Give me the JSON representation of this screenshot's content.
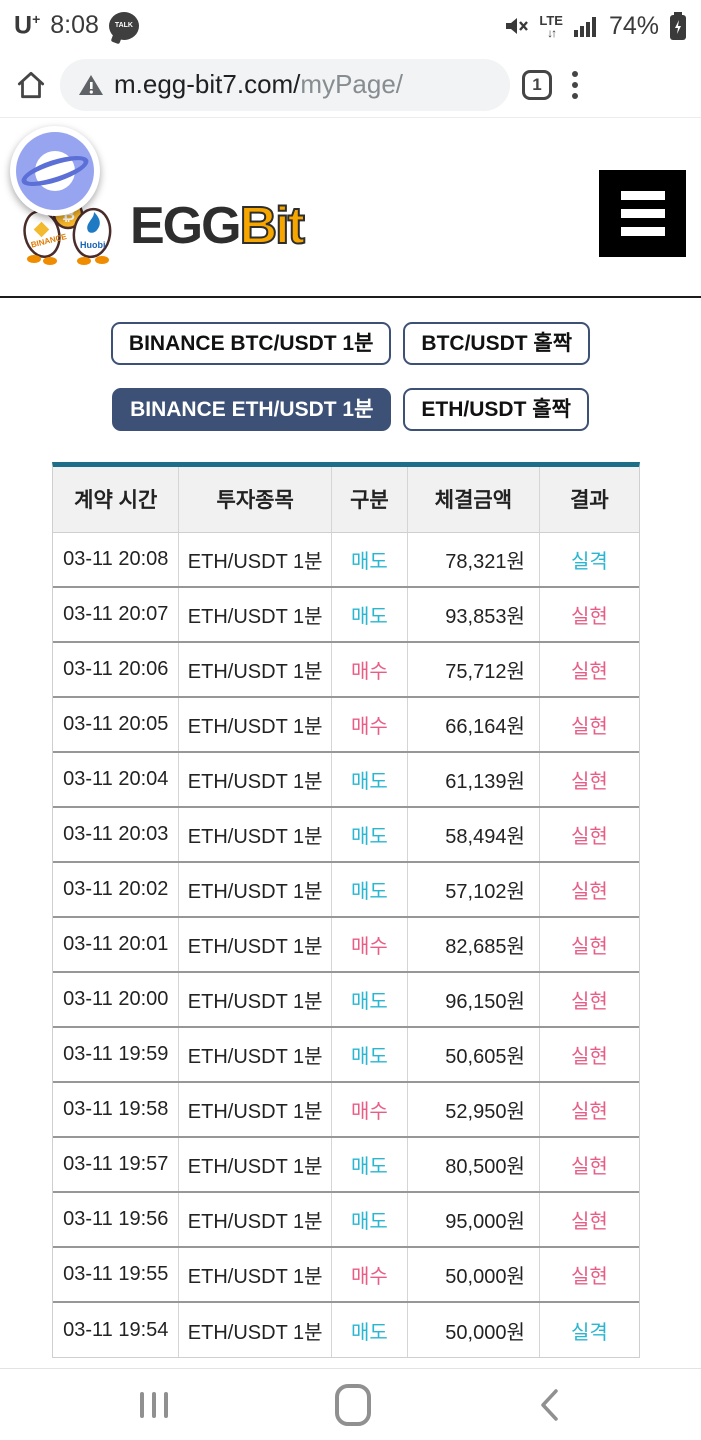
{
  "status_bar": {
    "carrier": "U",
    "carrier_sup": "+",
    "time": "8:08",
    "kakao_label": "TALK",
    "network_label": "LTE",
    "network_arrows": "↓↑",
    "battery_percent": "74%"
  },
  "browser": {
    "url_host": "m.egg-bit7.com/",
    "url_path": "myPage/",
    "tab_count": "1"
  },
  "header": {
    "logo_egg": "EGG",
    "logo_bit": "Bit"
  },
  "market_buttons": [
    {
      "label": "BINANCE BTC/USDT 1분",
      "active": false
    },
    {
      "label": "BTC/USDT 홀짝",
      "active": false
    },
    {
      "label": "BINANCE ETH/USDT 1분",
      "active": true
    },
    {
      "label": "ETH/USDT 홀짝",
      "active": false
    }
  ],
  "table": {
    "headers": [
      "계약 시간",
      "투자종목",
      "구분",
      "체결금액",
      "결과"
    ],
    "rows": [
      {
        "time": "03-11 20:08",
        "asset": "ETH/USDT 1분",
        "side": "매도",
        "side_color": "cyan",
        "amount": "78,321원",
        "result": "실격",
        "result_color": "cyan"
      },
      {
        "time": "03-11 20:07",
        "asset": "ETH/USDT 1분",
        "side": "매도",
        "side_color": "cyan",
        "amount": "93,853원",
        "result": "실현",
        "result_color": "pink"
      },
      {
        "time": "03-11 20:06",
        "asset": "ETH/USDT 1분",
        "side": "매수",
        "side_color": "pink",
        "amount": "75,712원",
        "result": "실현",
        "result_color": "pink"
      },
      {
        "time": "03-11 20:05",
        "asset": "ETH/USDT 1분",
        "side": "매수",
        "side_color": "pink",
        "amount": "66,164원",
        "result": "실현",
        "result_color": "pink"
      },
      {
        "time": "03-11 20:04",
        "asset": "ETH/USDT 1분",
        "side": "매도",
        "side_color": "cyan",
        "amount": "61,139원",
        "result": "실현",
        "result_color": "pink"
      },
      {
        "time": "03-11 20:03",
        "asset": "ETH/USDT 1분",
        "side": "매도",
        "side_color": "cyan",
        "amount": "58,494원",
        "result": "실현",
        "result_color": "pink"
      },
      {
        "time": "03-11 20:02",
        "asset": "ETH/USDT 1분",
        "side": "매도",
        "side_color": "cyan",
        "amount": "57,102원",
        "result": "실현",
        "result_color": "pink"
      },
      {
        "time": "03-11 20:01",
        "asset": "ETH/USDT 1분",
        "side": "매수",
        "side_color": "pink",
        "amount": "82,685원",
        "result": "실현",
        "result_color": "pink"
      },
      {
        "time": "03-11 20:00",
        "asset": "ETH/USDT 1분",
        "side": "매도",
        "side_color": "cyan",
        "amount": "96,150원",
        "result": "실현",
        "result_color": "pink"
      },
      {
        "time": "03-11 19:59",
        "asset": "ETH/USDT 1분",
        "side": "매도",
        "side_color": "cyan",
        "amount": "50,605원",
        "result": "실현",
        "result_color": "pink"
      },
      {
        "time": "03-11 19:58",
        "asset": "ETH/USDT 1분",
        "side": "매수",
        "side_color": "pink",
        "amount": "52,950원",
        "result": "실현",
        "result_color": "pink"
      },
      {
        "time": "03-11 19:57",
        "asset": "ETH/USDT 1분",
        "side": "매도",
        "side_color": "cyan",
        "amount": "80,500원",
        "result": "실현",
        "result_color": "pink"
      },
      {
        "time": "03-11 19:56",
        "asset": "ETH/USDT 1분",
        "side": "매도",
        "side_color": "cyan",
        "amount": "95,000원",
        "result": "실현",
        "result_color": "pink"
      },
      {
        "time": "03-11 19:55",
        "asset": "ETH/USDT 1분",
        "side": "매수",
        "side_color": "pink",
        "amount": "50,000원",
        "result": "실현",
        "result_color": "pink"
      },
      {
        "time": "03-11 19:54",
        "asset": "ETH/USDT 1분",
        "side": "매도",
        "side_color": "cyan",
        "amount": "50,000원",
        "result": "실격",
        "result_color": "cyan"
      }
    ]
  },
  "colors": {
    "accent_navy": "#3d5176",
    "table_top_border": "#1d6e88",
    "sell_cyan": "#29b6d0",
    "buy_pink": "#e85d85"
  }
}
